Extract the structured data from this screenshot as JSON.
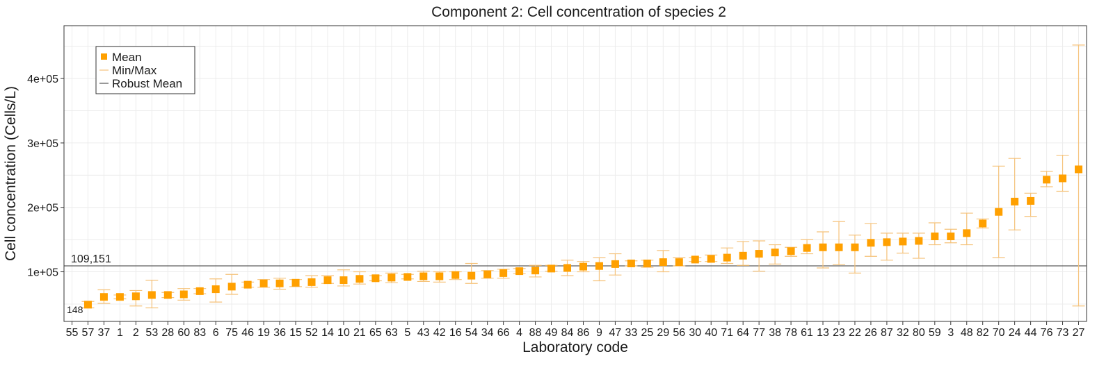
{
  "chart_data": {
    "type": "scatter",
    "title": "Component 2: Cell concentration of species 2",
    "xlabel": "Laboratory code",
    "ylabel": "Cell concentration (Cells/L)",
    "ylim": [
      23000,
      482000
    ],
    "yticks": [
      100000,
      200000,
      300000,
      400000
    ],
    "ytick_labels": [
      "1e+05",
      "2e+05",
      "3e+05",
      "4e+05"
    ],
    "grid": true,
    "legend": {
      "position": "top-left",
      "entries": [
        "Mean",
        "Min/Max",
        "Robust Mean"
      ]
    },
    "robust_mean": 109151,
    "robust_mean_label": "109,151",
    "colors": {
      "mean": "#FFA000",
      "minmax": "#F5C27A",
      "robust_mean": "#333333",
      "grid": "#ECECEC"
    },
    "low_value_note": {
      "lab": "55",
      "label": "148"
    },
    "labs": [
      "55",
      "57",
      "37",
      "1",
      "2",
      "53",
      "28",
      "60",
      "83",
      "6",
      "75",
      "46",
      "19",
      "36",
      "15",
      "52",
      "14",
      "10",
      "21",
      "65",
      "63",
      "5",
      "43",
      "42",
      "16",
      "54",
      "34",
      "66",
      "4",
      "88",
      "49",
      "84",
      "86",
      "9",
      "47",
      "33",
      "25",
      "29",
      "56",
      "30",
      "40",
      "71",
      "64",
      "77",
      "38",
      "78",
      "61",
      "13",
      "23",
      "22",
      "26",
      "87",
      "32",
      "80",
      "59",
      "3",
      "48",
      "82",
      "70",
      "24",
      "44",
      "76",
      "73",
      "27"
    ],
    "means": [
      148,
      49000,
      61000,
      61000,
      62000,
      64000,
      64000,
      65000,
      70000,
      73000,
      77000,
      80000,
      82000,
      82000,
      83000,
      84000,
      87000,
      87000,
      89000,
      90000,
      91000,
      92000,
      93000,
      93000,
      95000,
      94000,
      96000,
      98000,
      101000,
      102000,
      105000,
      106000,
      108000,
      109000,
      112000,
      113000,
      113000,
      115000,
      115000,
      119000,
      120000,
      122000,
      125000,
      128000,
      130000,
      132000,
      137000,
      138000,
      138000,
      138000,
      145000,
      146000,
      147000,
      148000,
      155000,
      155000,
      160000,
      175000,
      193000,
      209000,
      210000,
      243000,
      245000,
      259000
    ],
    "mins": [
      null,
      44000,
      51000,
      58000,
      47000,
      44000,
      60000,
      56000,
      66000,
      53000,
      65000,
      76000,
      76000,
      73000,
      77000,
      76000,
      82000,
      78000,
      81000,
      86000,
      83000,
      89000,
      85000,
      84000,
      88000,
      82000,
      90000,
      90000,
      97000,
      92000,
      101000,
      94000,
      100000,
      86000,
      95000,
      109000,
      107000,
      100000,
      109000,
      116000,
      116000,
      113000,
      110000,
      101000,
      112000,
      124000,
      128000,
      106000,
      111000,
      98000,
      124000,
      118000,
      129000,
      121000,
      142000,
      145000,
      142000,
      168000,
      122000,
      165000,
      186000,
      232000,
      225000,
      47000
    ],
    "maxs": [
      null,
      54000,
      72000,
      64000,
      71000,
      87000,
      68000,
      74000,
      74000,
      89000,
      96000,
      84000,
      88000,
      90000,
      88000,
      94000,
      94000,
      103000,
      100000,
      94000,
      98000,
      96000,
      101000,
      100000,
      100000,
      113000,
      102000,
      104000,
      105000,
      110000,
      110000,
      118000,
      116000,
      122000,
      128000,
      117000,
      118000,
      133000,
      122000,
      122000,
      126000,
      137000,
      147000,
      148000,
      142000,
      138000,
      150000,
      162000,
      178000,
      157000,
      175000,
      160000,
      160000,
      160000,
      176000,
      166000,
      191000,
      182000,
      264000,
      276000,
      222000,
      256000,
      281000,
      452000
    ]
  }
}
